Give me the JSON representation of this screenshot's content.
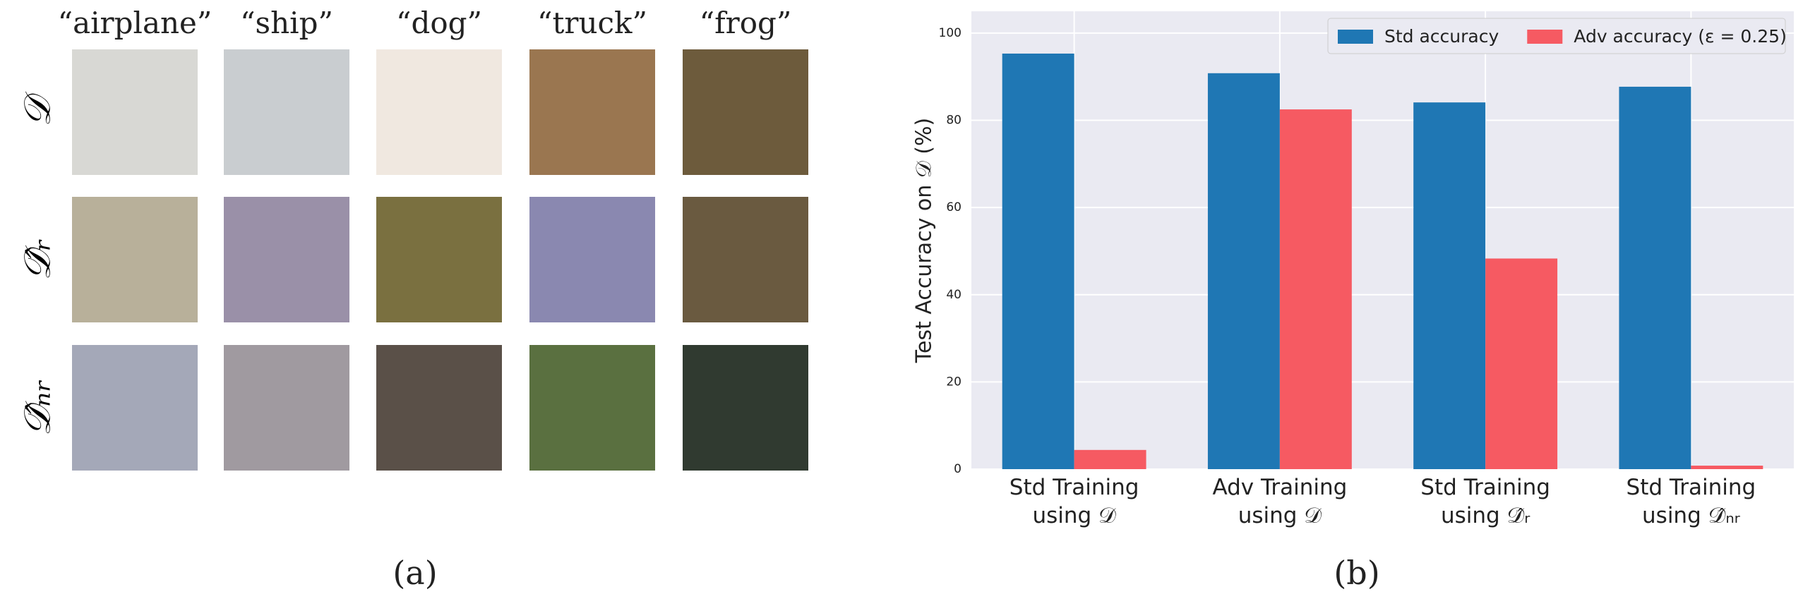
{
  "panel_a": {
    "columns": [
      "“airplane”",
      "“ship”",
      "“dog”",
      "“truck”",
      "“frog”"
    ],
    "rows": [
      "𝒟",
      "𝒟̂ᵣ",
      "𝒟̂ₙᵣ"
    ],
    "caption": "(a)"
  },
  "chart_data": {
    "type": "bar",
    "ylabel": "Test Accuracy on 𝒟 (%)",
    "categories": [
      "Std Training using 𝒟",
      "Adv Training using 𝒟",
      "Std Training using 𝒟̂ᵣ",
      "Std Training using 𝒟̂ₙᵣ"
    ],
    "series": [
      {
        "name": "Std accuracy",
        "color": "#1f77b4",
        "values": [
          95.3,
          90.8,
          84.1,
          87.7
        ]
      },
      {
        "name": "Adv accuracy (ε = 0.25)",
        "color": "#f65a62",
        "values": [
          4.4,
          82.5,
          48.3,
          0.8
        ]
      }
    ],
    "ylim": [
      0,
      105
    ],
    "yticks": [
      0,
      20,
      40,
      60,
      80,
      100
    ],
    "grid": true,
    "legend": "upper right"
  },
  "panel_b": {
    "caption": "(b)"
  }
}
